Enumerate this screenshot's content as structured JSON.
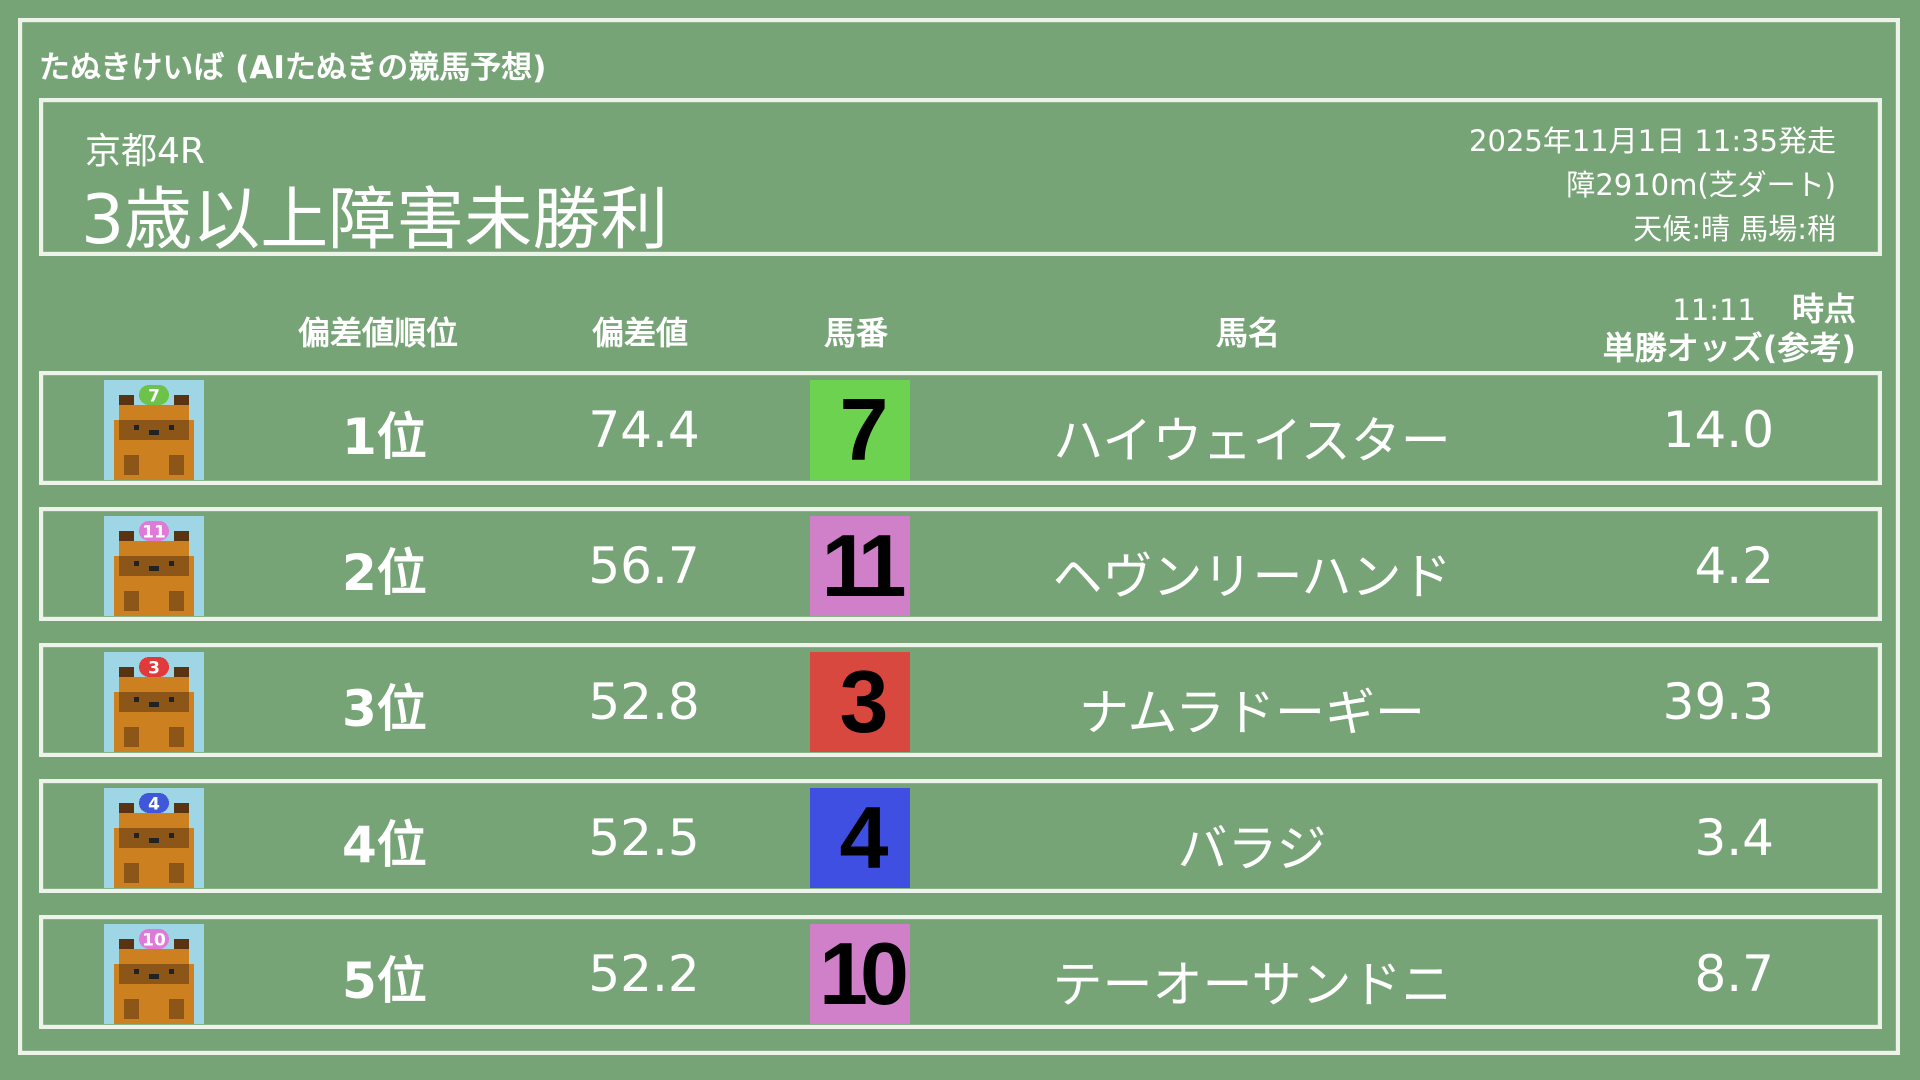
{
  "site_title": "たぬきけいば (AIたぬきの競馬予想)",
  "race": {
    "venue": "京都4R",
    "name": "3歳以上障害未勝利",
    "datetime": "2025年11月1日 11:35発走",
    "course": "障2910m(芝ダート)",
    "conditions": "天候:晴 馬場:稍"
  },
  "columns": {
    "rank": "偏差値順位",
    "score": "偏差値",
    "number": "馬番",
    "horse": "馬名",
    "odds_time": "11:11",
    "odds_time_suffix": "時点",
    "odds": "単勝オッズ(参考)"
  },
  "rows": [
    {
      "rank": "1位",
      "score": "74.4",
      "number": "7",
      "horse": "ハイウェイスター",
      "odds": "14.0",
      "color": "#6dd24f",
      "cap_color": "#6dc24a"
    },
    {
      "rank": "2位",
      "score": "56.7",
      "number": "11",
      "horse": "ヘヴンリーハンド",
      "odds": "4.2",
      "color": "#d07fc9",
      "cap_color": "#e07ad8"
    },
    {
      "rank": "3位",
      "score": "52.8",
      "number": "3",
      "horse": "ナムラドーギー",
      "odds": "39.3",
      "color": "#d9483f",
      "cap_color": "#e23a3a"
    },
    {
      "rank": "4位",
      "score": "52.5",
      "number": "4",
      "horse": "バラジ",
      "odds": "3.4",
      "color": "#3f4fe1",
      "cap_color": "#3f57d8"
    },
    {
      "rank": "5位",
      "score": "52.2",
      "number": "10",
      "horse": "テーオーサンドニ",
      "odds": "8.7",
      "color": "#d07fc9",
      "cap_color": "#e07ad8"
    }
  ]
}
